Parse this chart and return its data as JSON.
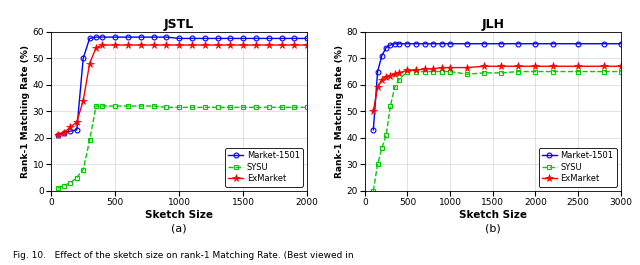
{
  "title_left": "JSTL",
  "title_right": "JLH",
  "xlabel": "Sketch Size",
  "ylabel": "Rank-1 Matching Rate (%)",
  "label_a": "(a)",
  "label_b": "(b)",
  "caption": "Fig. 10.   Effect of the sketch size on rank-1 Matching Rate. (Best viewed in",
  "left": {
    "xlim": [
      0,
      2000
    ],
    "ylim": [
      0,
      60
    ],
    "xticks": [
      0,
      500,
      1000,
      1500,
      2000
    ],
    "yticks": [
      0,
      10,
      20,
      30,
      40,
      50,
      60
    ],
    "market1501_x": [
      50,
      100,
      150,
      200,
      250,
      300,
      350,
      400,
      500,
      600,
      700,
      800,
      900,
      1000,
      1100,
      1200,
      1300,
      1400,
      1500,
      1600,
      1700,
      1800,
      1900,
      2000
    ],
    "market1501_y": [
      21,
      22,
      22.5,
      23,
      50,
      57.5,
      58,
      58,
      58,
      58,
      58,
      58,
      58,
      57.5,
      57.5,
      57.5,
      57.5,
      57.5,
      57.5,
      57.5,
      57.5,
      57.5,
      57.5,
      57.5
    ],
    "sysu_x": [
      50,
      100,
      150,
      200,
      250,
      300,
      350,
      400,
      500,
      600,
      700,
      800,
      900,
      1000,
      1100,
      1200,
      1300,
      1400,
      1500,
      1600,
      1700,
      1800,
      1900,
      2000
    ],
    "sysu_y": [
      1,
      2,
      3,
      5,
      8,
      19,
      32,
      32,
      32,
      32,
      32,
      32,
      31.5,
      31.5,
      31.5,
      31.5,
      31.5,
      31.5,
      31.5,
      31.5,
      31.5,
      31.5,
      31.5,
      31.5
    ],
    "exmarket_x": [
      50,
      100,
      150,
      200,
      250,
      300,
      350,
      400,
      500,
      600,
      700,
      800,
      900,
      1000,
      1100,
      1200,
      1300,
      1400,
      1500,
      1600,
      1700,
      1800,
      1900,
      2000
    ],
    "exmarket_y": [
      21,
      22,
      24,
      26,
      34,
      48,
      54,
      55,
      55,
      55,
      55,
      55,
      55,
      55,
      55,
      55,
      55,
      55,
      55,
      55,
      55,
      55,
      55,
      55
    ]
  },
  "right": {
    "xlim": [
      0,
      3000
    ],
    "ylim": [
      20,
      80
    ],
    "xticks": [
      0,
      500,
      1000,
      1500,
      2000,
      2500,
      3000
    ],
    "yticks": [
      20,
      30,
      40,
      50,
      60,
      70,
      80
    ],
    "market1501_x": [
      100,
      150,
      200,
      250,
      300,
      350,
      400,
      500,
      600,
      700,
      800,
      900,
      1000,
      1200,
      1400,
      1600,
      1800,
      2000,
      2200,
      2500,
      2800,
      3000
    ],
    "market1501_y": [
      43,
      65,
      71,
      74,
      75,
      75.5,
      75.5,
      75.5,
      75.5,
      75.5,
      75.5,
      75.5,
      75.5,
      75.5,
      75.5,
      75.5,
      75.5,
      75.5,
      75.5,
      75.5,
      75.5,
      75.5
    ],
    "sysu_x": [
      100,
      150,
      200,
      250,
      300,
      350,
      400,
      500,
      600,
      700,
      800,
      900,
      1000,
      1200,
      1400,
      1600,
      1800,
      2000,
      2200,
      2500,
      2800,
      3000
    ],
    "sysu_y": [
      20,
      30,
      36,
      41,
      52,
      59,
      62,
      65,
      65,
      65,
      65,
      65,
      65,
      64,
      64.5,
      64.5,
      65,
      65,
      65,
      65,
      65,
      65
    ],
    "exmarket_x": [
      100,
      150,
      200,
      250,
      300,
      350,
      400,
      500,
      600,
      700,
      800,
      900,
      1000,
      1200,
      1400,
      1600,
      1800,
      2000,
      2200,
      2500,
      2800,
      3000
    ],
    "exmarket_y": [
      50,
      59,
      62,
      63,
      63.5,
      64,
      64.5,
      65.5,
      65.5,
      66,
      66,
      66.5,
      66.5,
      66.5,
      67,
      67,
      67,
      67,
      67,
      67,
      67,
      67
    ]
  },
  "color_market": "#0000ff",
  "color_sysu": "#00cc00",
  "color_exmarket": "#ff0000",
  "legend_labels": [
    "Market-1501",
    "SYSU",
    "ExMarket"
  ],
  "marker_market": "o",
  "marker_sysu": "s",
  "marker_exmarket": "*",
  "linewidth": 1.0,
  "markersize_market": 3.5,
  "markersize_sysu": 3.5,
  "markersize_exmarket": 5.5
}
